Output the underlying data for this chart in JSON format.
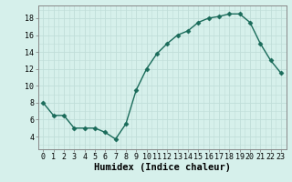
{
  "x": [
    0,
    1,
    2,
    3,
    4,
    5,
    6,
    7,
    8,
    9,
    10,
    11,
    12,
    13,
    14,
    15,
    16,
    17,
    18,
    19,
    20,
    21,
    22,
    23
  ],
  "y": [
    8.0,
    6.5,
    6.5,
    5.0,
    5.0,
    5.0,
    4.5,
    3.7,
    5.5,
    9.5,
    12.0,
    13.8,
    15.0,
    16.0,
    16.5,
    17.5,
    18.0,
    18.2,
    18.5,
    18.5,
    17.5,
    15.0,
    13.0,
    11.5
  ],
  "line_color": "#1a6b5a",
  "marker": "D",
  "marker_size": 2.5,
  "bg_color": "#d6f0eb",
  "grid_color": "#c0ddd8",
  "xlabel": "Humidex (Indice chaleur)",
  "xlim": [
    -0.5,
    23.5
  ],
  "ylim": [
    2.5,
    19.5
  ],
  "yticks": [
    4,
    6,
    8,
    10,
    12,
    14,
    16,
    18
  ],
  "xtick_labels": [
    "0",
    "1",
    "2",
    "3",
    "4",
    "5",
    "6",
    "7",
    "8",
    "9",
    "10",
    "11",
    "12",
    "13",
    "14",
    "15",
    "16",
    "17",
    "18",
    "19",
    "20",
    "21",
    "22",
    "23"
  ],
  "tick_fontsize": 6,
  "xlabel_fontsize": 7.5,
  "spine_color": "#888888",
  "line_width": 1.0
}
